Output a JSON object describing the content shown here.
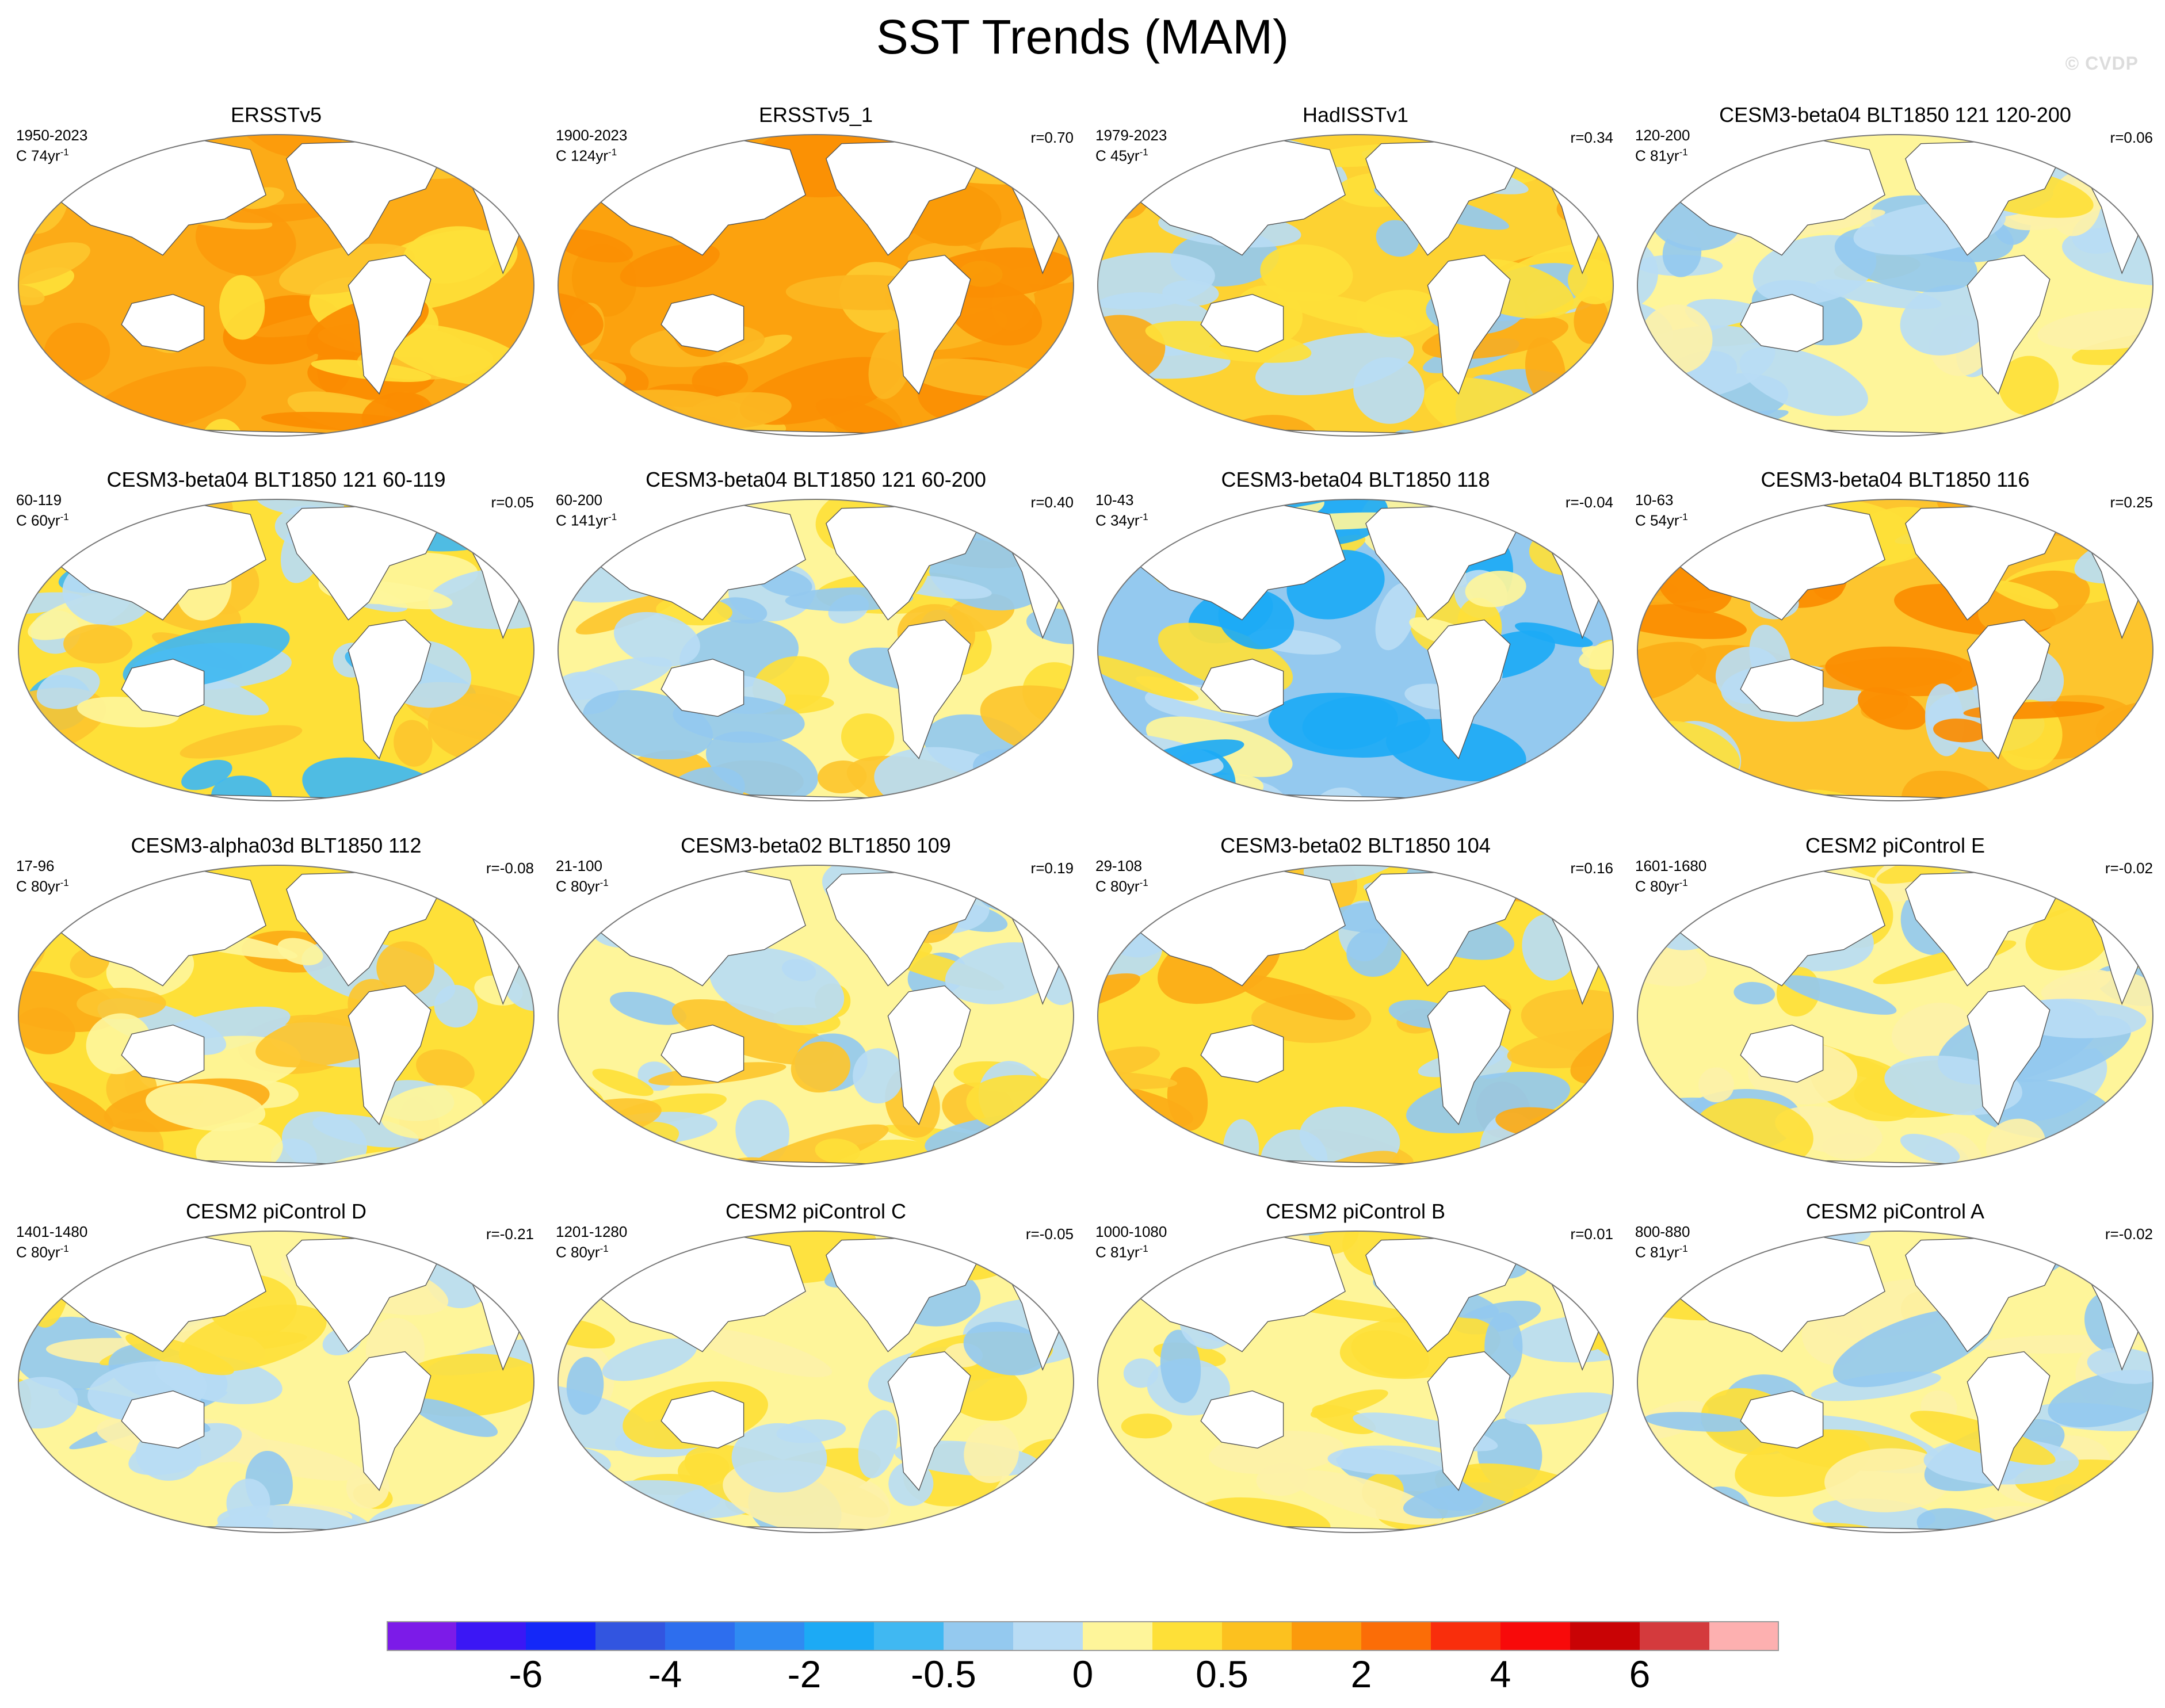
{
  "figure": {
    "title": "SST Trends (MAM)",
    "watermark": "© CVDP"
  },
  "land_color": "#ffffff",
  "panels": [
    {
      "title": "ERSSTv5",
      "period": "1950-2023",
      "trend": "C 74yr",
      "unit_exp": "-1",
      "corr": "",
      "palette": [
        "#fcab17",
        "#fee038",
        "#fc9a0c",
        "#fdc52e",
        "#fb8c01"
      ]
    },
    {
      "title": "ERSSTv5_1",
      "period": "1900-2023",
      "trend": "C 124yr",
      "unit_exp": "-1",
      "corr": "r=0.70",
      "palette": [
        "#fca20e",
        "#fcb722",
        "#fb8f03",
        "#fdcb30",
        "#fa9a08"
      ]
    },
    {
      "title": "HadISSTv1",
      "period": "1979-2023",
      "trend": "C 45yr",
      "unit_exp": "-1",
      "corr": "r=0.34",
      "palette": [
        "#fdd232",
        "#fcab17",
        "#b9dcf4",
        "#fee038",
        "#94c9ef"
      ]
    },
    {
      "title": "CESM3-beta04 BLT1850 121 120-200",
      "period": "120-200",
      "trend": "C 81yr",
      "unit_exp": "-1",
      "corr": "r=0.06",
      "palette": [
        "#fef59a",
        "#b9dcf4",
        "#fee038",
        "#94c9ef",
        "#fdf1a8"
      ]
    },
    {
      "title": "CESM3-beta04 BLT1850 121 60-119",
      "period": "60-119",
      "trend": "C 60yr",
      "unit_exp": "-1",
      "corr": "r=0.05",
      "palette": [
        "#fee038",
        "#b9dcf4",
        "#fdc52e",
        "#40b8f2",
        "#fef59a"
      ]
    },
    {
      "title": "CESM3-beta04 BLT1850 121 60-200",
      "period": "60-200",
      "trend": "C 141yr",
      "unit_exp": "-1",
      "corr": "r=0.40",
      "palette": [
        "#fef59a",
        "#fee038",
        "#b9dcf4",
        "#fdc52e",
        "#94c9ef"
      ]
    },
    {
      "title": "CESM3-beta04 BLT1850 118",
      "period": "10-43",
      "trend": "C 34yr",
      "unit_exp": "-1",
      "corr": "r=-0.04",
      "palette": [
        "#94c9ef",
        "#b9dcf4",
        "#fee038",
        "#1caaf5",
        "#fef59a"
      ]
    },
    {
      "title": "CESM3-beta04 BLT1850 116",
      "period": "10-63",
      "trend": "C 54yr",
      "unit_exp": "-1",
      "corr": "r=0.25",
      "palette": [
        "#fdc52e",
        "#fcab17",
        "#fee038",
        "#fb8c01",
        "#b9dcf4"
      ]
    },
    {
      "title": "CESM3-alpha03d BLT1850 112",
      "period": "17-96",
      "trend": "C 80yr",
      "unit_exp": "-1",
      "corr": "r=-0.08",
      "palette": [
        "#fee038",
        "#fef59a",
        "#fcab17",
        "#b9dcf4",
        "#fdc52e"
      ]
    },
    {
      "title": "CESM3-beta02 BLT1850 109",
      "period": "21-100",
      "trend": "C 80yr",
      "unit_exp": "-1",
      "corr": "r=0.19",
      "palette": [
        "#fef59a",
        "#b9dcf4",
        "#fee038",
        "#94c9ef",
        "#fdc52e"
      ]
    },
    {
      "title": "CESM3-beta02 BLT1850 104",
      "period": "29-108",
      "trend": "C 80yr",
      "unit_exp": "-1",
      "corr": "r=0.16",
      "palette": [
        "#fee038",
        "#94c9ef",
        "#fdc52e",
        "#b9dcf4",
        "#fcab17"
      ]
    },
    {
      "title": "CESM2 piControl E",
      "period": "1601-1680",
      "trend": "C 80yr",
      "unit_exp": "-1",
      "corr": "r=-0.02",
      "palette": [
        "#fef59a",
        "#b9dcf4",
        "#fdf1a8",
        "#94c9ef",
        "#fee038"
      ]
    },
    {
      "title": "CESM2 piControl D",
      "period": "1401-1480",
      "trend": "C 80yr",
      "unit_exp": "-1",
      "corr": "r=-0.21",
      "palette": [
        "#fef59a",
        "#b9dcf4",
        "#94c9ef",
        "#fee038",
        "#fdf1a8"
      ]
    },
    {
      "title": "CESM2 piControl C",
      "period": "1201-1280",
      "trend": "C 80yr",
      "unit_exp": "-1",
      "corr": "r=-0.05",
      "palette": [
        "#fef59a",
        "#b9dcf4",
        "#fee038",
        "#94c9ef",
        "#fdf1a8"
      ]
    },
    {
      "title": "CESM2 piControl B",
      "period": "1000-1080",
      "trend": "C 81yr",
      "unit_exp": "-1",
      "corr": "r=0.01",
      "palette": [
        "#fef59a",
        "#b9dcf4",
        "#fee038",
        "#94c9ef",
        "#fdf1a8"
      ]
    },
    {
      "title": "CESM2 piControl A",
      "period": "800-880",
      "trend": "C 81yr",
      "unit_exp": "-1",
      "corr": "r=-0.02",
      "palette": [
        "#fef59a",
        "#b9dcf4",
        "#fee038",
        "#94c9ef",
        "#fdf1a8"
      ]
    }
  ],
  "colorbar": {
    "colors": [
      "#7c1be8",
      "#3b17f5",
      "#1428f8",
      "#3255e0",
      "#2d6eee",
      "#2f8bf2",
      "#1caaf5",
      "#40b8f2",
      "#94c9ef",
      "#b9dcf4",
      "#fef59a",
      "#fee038",
      "#fcc11f",
      "#fb9a0c",
      "#fb6d07",
      "#f92e0c",
      "#f80a0a",
      "#c90305",
      "#d43a3d",
      "#fdb0b0"
    ],
    "labels": [
      "-6",
      "-4",
      "-2",
      "-0.5",
      "0",
      "0.5",
      "2",
      "4",
      "6"
    ]
  }
}
